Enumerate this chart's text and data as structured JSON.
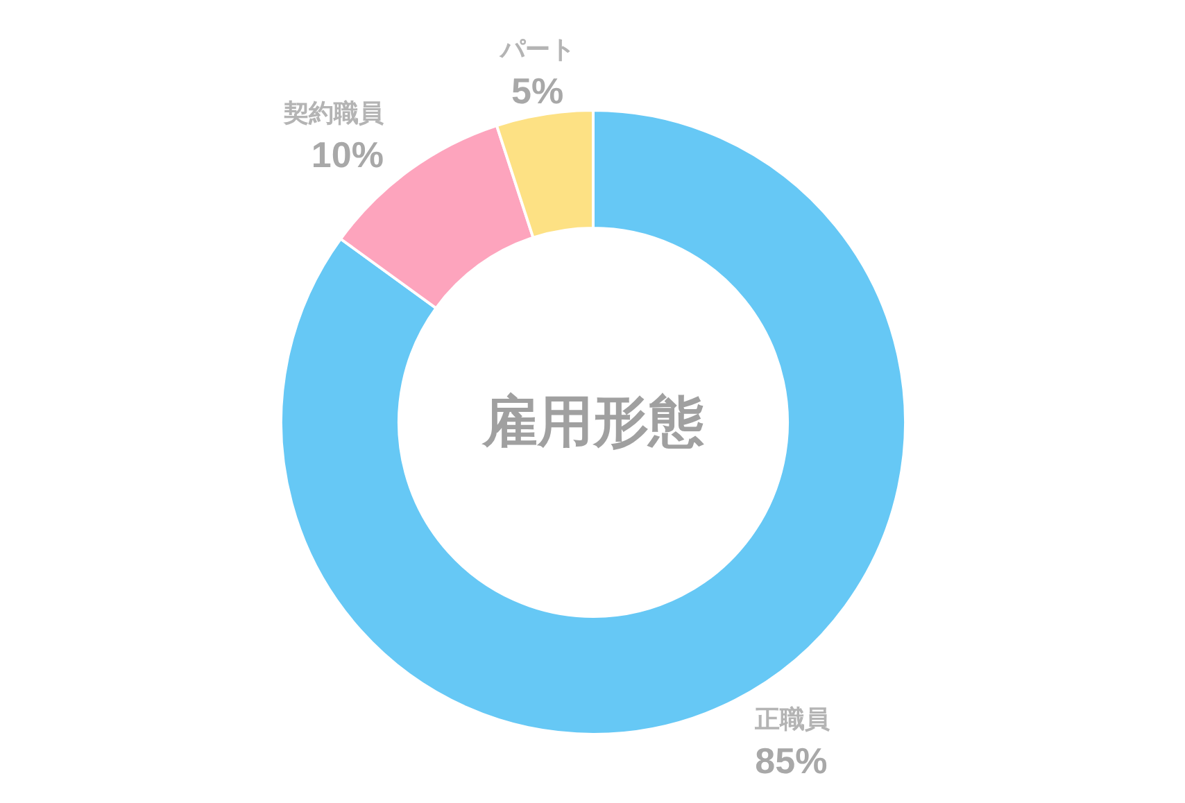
{
  "chart_data": {
    "type": "donut",
    "title": "雇用形態",
    "categories": [
      "正職員",
      "契約職員",
      "パート"
    ],
    "values": [
      85,
      10,
      5
    ],
    "value_labels": [
      "85%",
      "10%",
      "5%"
    ],
    "colors": [
      "#66c8f5",
      "#fda4bd",
      "#fde184"
    ]
  }
}
